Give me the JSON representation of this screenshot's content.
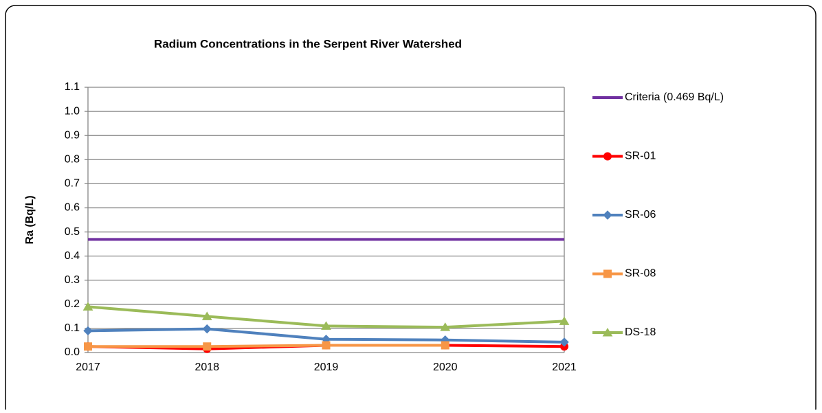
{
  "chart_data": {
    "type": "line",
    "title": "Radium Concentrations in the Serpent River Watershed",
    "y_label": "Ra (Bq/L)",
    "categories": [
      "2017",
      "2018",
      "2019",
      "2020",
      "2021"
    ],
    "series": [
      {
        "name": "Criteria (0.469 Bq/L)",
        "color": "#7030a0",
        "marker": "none",
        "values": [
          0.469,
          0.469,
          0.469,
          0.469,
          0.469
        ]
      },
      {
        "name": "SR-01",
        "color": "#ff0000",
        "marker": "circle",
        "values": [
          0.025,
          0.015,
          0.03,
          0.03,
          0.025
        ]
      },
      {
        "name": "SR-06",
        "color": "#4f81bd",
        "marker": "diamond",
        "values": [
          0.09,
          0.098,
          0.055,
          0.052,
          0.043
        ]
      },
      {
        "name": "SR-08",
        "color": "#f79646",
        "marker": "square",
        "values": [
          0.025,
          0.025,
          0.03,
          0.03,
          null
        ]
      },
      {
        "name": "DS-18",
        "color": "#9bbb59",
        "marker": "triangle",
        "values": [
          0.19,
          0.15,
          0.11,
          0.105,
          0.13
        ]
      }
    ],
    "ylim": [
      0,
      1.1
    ],
    "yticks": [
      {
        "value": 0,
        "label": "0.0"
      },
      0.1,
      0.2,
      0.3,
      0.4,
      0.5,
      0.6,
      0.7,
      0.8,
      0.9,
      {
        "value": 1,
        "label": "1.0"
      },
      1.1
    ],
    "grid": true,
    "legend": "right"
  }
}
